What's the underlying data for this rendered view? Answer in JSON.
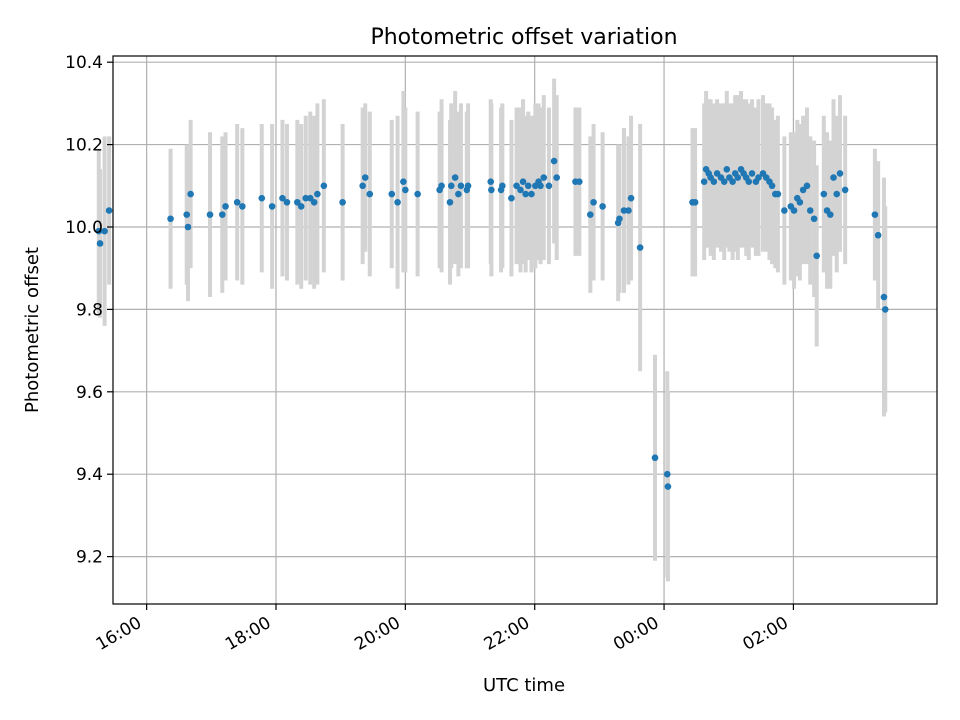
{
  "chart_data": {
    "type": "scatter",
    "title": "Photometric offset variation",
    "xlabel": "UTC time",
    "ylabel": "Photometric offset",
    "x_unit": "hours since 16:00 UTC (values above 8 are after midnight)",
    "xlim": [
      -0.52,
      12.22
    ],
    "ylim": [
      9.085,
      10.415
    ],
    "grid": true,
    "x_ticks": [
      {
        "value": 0,
        "label": "16:00"
      },
      {
        "value": 2,
        "label": "18:00"
      },
      {
        "value": 4,
        "label": "20:00"
      },
      {
        "value": 6,
        "label": "22:00"
      },
      {
        "value": 8,
        "label": "00:00"
      },
      {
        "value": 10,
        "label": "02:00"
      }
    ],
    "y_ticks": [
      {
        "value": 9.2,
        "label": "9.2"
      },
      {
        "value": 9.4,
        "label": "9.4"
      },
      {
        "value": 9.6,
        "label": "9.6"
      },
      {
        "value": 9.8,
        "label": "9.8"
      },
      {
        "value": 10.0,
        "label": "10.0"
      },
      {
        "value": 10.2,
        "label": "10.2"
      },
      {
        "value": 10.4,
        "label": "10.4"
      }
    ],
    "marker_color": "#1f77b4",
    "errorbar_color": "#d3d3d3",
    "series": [
      {
        "name": "offset",
        "points": [
          [
            -0.74,
            9.99,
            0.2
          ],
          [
            -0.72,
            9.96,
            0.18
          ],
          [
            -0.65,
            9.99,
            0.23
          ],
          [
            -0.58,
            10.04,
            0.18
          ],
          [
            0.37,
            10.02,
            0.17
          ],
          [
            0.62,
            10.03,
            0.17
          ],
          [
            0.64,
            10.0,
            0.18
          ],
          [
            0.68,
            10.08,
            0.18
          ],
          [
            0.98,
            10.03,
            0.2
          ],
          [
            1.17,
            10.03,
            0.19
          ],
          [
            1.22,
            10.05,
            0.18
          ],
          [
            1.4,
            10.06,
            0.19
          ],
          [
            1.48,
            10.05,
            0.19
          ],
          [
            1.78,
            10.07,
            0.18
          ],
          [
            1.94,
            10.05,
            0.2
          ],
          [
            2.1,
            10.07,
            0.19
          ],
          [
            2.17,
            10.06,
            0.19
          ],
          [
            2.33,
            10.06,
            0.2
          ],
          [
            2.39,
            10.05,
            0.2
          ],
          [
            2.46,
            10.07,
            0.2
          ],
          [
            2.53,
            10.07,
            0.21
          ],
          [
            2.59,
            10.06,
            0.21
          ],
          [
            2.64,
            10.08,
            0.22
          ],
          [
            2.74,
            10.1,
            0.21
          ],
          [
            3.03,
            10.06,
            0.19
          ],
          [
            3.34,
            10.1,
            0.19
          ],
          [
            3.38,
            10.12,
            0.18
          ],
          [
            3.45,
            10.08,
            0.2
          ],
          [
            3.79,
            10.08,
            0.18
          ],
          [
            3.88,
            10.06,
            0.21
          ],
          [
            3.97,
            10.11,
            0.22
          ],
          [
            4.0,
            10.09,
            0.2
          ],
          [
            4.19,
            10.08,
            0.2
          ],
          [
            4.53,
            10.09,
            0.19
          ],
          [
            4.56,
            10.1,
            0.21
          ],
          [
            4.69,
            10.06,
            0.2
          ],
          [
            4.71,
            10.1,
            0.2
          ],
          [
            4.77,
            10.12,
            0.21
          ],
          [
            4.82,
            10.08,
            0.2
          ],
          [
            4.86,
            10.1,
            0.2
          ],
          [
            4.95,
            10.09,
            0.19
          ],
          [
            4.97,
            10.1,
            0.2
          ],
          [
            5.32,
            10.11,
            0.2
          ],
          [
            5.33,
            10.09,
            0.21
          ],
          [
            5.48,
            10.09,
            0.2
          ],
          [
            5.5,
            10.1,
            0.2
          ],
          [
            5.64,
            10.07,
            0.19
          ],
          [
            5.72,
            10.1,
            0.19
          ],
          [
            5.78,
            10.09,
            0.2
          ],
          [
            5.82,
            10.11,
            0.2
          ],
          [
            5.86,
            10.08,
            0.19
          ],
          [
            5.9,
            10.1,
            0.18
          ],
          [
            5.95,
            10.08,
            0.19
          ],
          [
            6.01,
            10.1,
            0.2
          ],
          [
            6.06,
            10.11,
            0.19
          ],
          [
            6.09,
            10.1,
            0.19
          ],
          [
            6.14,
            10.12,
            0.2
          ],
          [
            6.22,
            10.1,
            0.19
          ],
          [
            6.3,
            10.16,
            0.2
          ],
          [
            6.34,
            10.12,
            0.2
          ],
          [
            6.63,
            10.11,
            0.18
          ],
          [
            6.69,
            10.11,
            0.18
          ],
          [
            6.86,
            10.03,
            0.19
          ],
          [
            6.91,
            10.06,
            0.19
          ],
          [
            7.05,
            10.05,
            0.18
          ],
          [
            7.29,
            10.01,
            0.19
          ],
          [
            7.31,
            10.02,
            0.18
          ],
          [
            7.38,
            10.04,
            0.2
          ],
          [
            7.45,
            10.04,
            0.18
          ],
          [
            7.49,
            10.07,
            0.2
          ],
          [
            7.63,
            9.95,
            0.3
          ],
          [
            7.86,
            9.44,
            0.25
          ],
          [
            8.05,
            9.4,
            0.25
          ],
          [
            8.06,
            9.37,
            0.23
          ],
          [
            8.44,
            10.06,
            0.18
          ],
          [
            8.48,
            10.06,
            0.18
          ],
          [
            8.62,
            10.11,
            0.19
          ],
          [
            8.65,
            10.14,
            0.19
          ],
          [
            8.69,
            10.13,
            0.18
          ],
          [
            8.72,
            10.12,
            0.19
          ],
          [
            8.77,
            10.11,
            0.19
          ],
          [
            8.82,
            10.13,
            0.18
          ],
          [
            8.88,
            10.12,
            0.18
          ],
          [
            8.93,
            10.11,
            0.19
          ],
          [
            8.97,
            10.14,
            0.19
          ],
          [
            9.01,
            10.12,
            0.18
          ],
          [
            9.06,
            10.11,
            0.19
          ],
          [
            9.1,
            10.13,
            0.19
          ],
          [
            9.14,
            10.12,
            0.2
          ],
          [
            9.19,
            10.14,
            0.19
          ],
          [
            9.23,
            10.13,
            0.18
          ],
          [
            9.27,
            10.12,
            0.19
          ],
          [
            9.31,
            10.11,
            0.19
          ],
          [
            9.36,
            10.13,
            0.18
          ],
          [
            9.42,
            10.11,
            0.18
          ],
          [
            9.46,
            10.12,
            0.19
          ],
          [
            9.53,
            10.13,
            0.19
          ],
          [
            9.58,
            10.12,
            0.18
          ],
          [
            9.63,
            10.11,
            0.19
          ],
          [
            9.67,
            10.1,
            0.19
          ],
          [
            9.72,
            10.08,
            0.18
          ],
          [
            9.76,
            10.08,
            0.19
          ],
          [
            9.86,
            10.04,
            0.18
          ],
          [
            9.96,
            10.05,
            0.18
          ],
          [
            10.01,
            10.04,
            0.19
          ],
          [
            10.06,
            10.07,
            0.19
          ],
          [
            10.1,
            10.06,
            0.19
          ],
          [
            10.15,
            10.09,
            0.18
          ],
          [
            10.21,
            10.1,
            0.19
          ],
          [
            10.26,
            10.04,
            0.18
          ],
          [
            10.32,
            10.02,
            0.19
          ],
          [
            10.36,
            9.93,
            0.22
          ],
          [
            10.47,
            10.08,
            0.19
          ],
          [
            10.52,
            10.04,
            0.19
          ],
          [
            10.57,
            10.03,
            0.18
          ],
          [
            10.62,
            10.12,
            0.19
          ],
          [
            10.67,
            10.08,
            0.19
          ],
          [
            10.72,
            10.13,
            0.19
          ],
          [
            10.8,
            10.09,
            0.18
          ],
          [
            11.26,
            10.03,
            0.16
          ],
          [
            11.31,
            9.98,
            0.18
          ],
          [
            11.4,
            9.83,
            0.29
          ],
          [
            11.42,
            9.8,
            0.25
          ]
        ]
      }
    ]
  }
}
